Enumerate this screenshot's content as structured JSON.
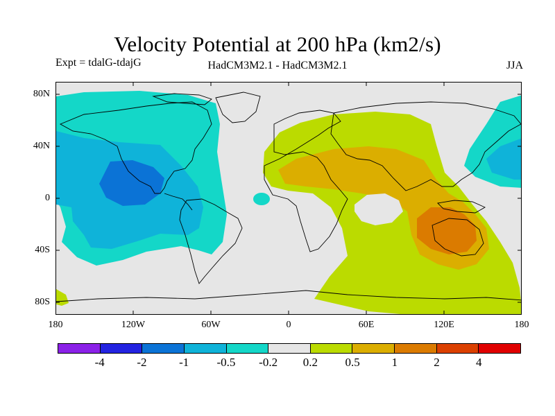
{
  "header": {
    "title": "Velocity Potential at 200 hPa (km2/s)",
    "experiment": "Expt = tdalG-tdajG",
    "model": "HadCM3M2.1 - HadCM3M2.1",
    "season": "JJA"
  },
  "map": {
    "projection": "cylindrical equidistant",
    "background_color": "#e6e6e6",
    "lat_labels": [
      "80N",
      "40N",
      "0",
      "40S",
      "80S"
    ],
    "lon_labels": [
      "180",
      "120W",
      "60W",
      "0",
      "60E",
      "120E",
      "180"
    ]
  },
  "colorbar": {
    "colors": [
      "#8b21e8",
      "#2323e1",
      "#0b73d6",
      "#0fb3d9",
      "#14d7c8",
      "#e6e6e6",
      "#bbdb00",
      "#dbae00",
      "#db7b00",
      "#db4000",
      "#e00000"
    ],
    "labels": [
      "-4",
      "-2",
      "-1",
      "-0.5",
      "-0.2",
      "0.2",
      "0.5",
      "1",
      "2",
      "4"
    ]
  }
}
